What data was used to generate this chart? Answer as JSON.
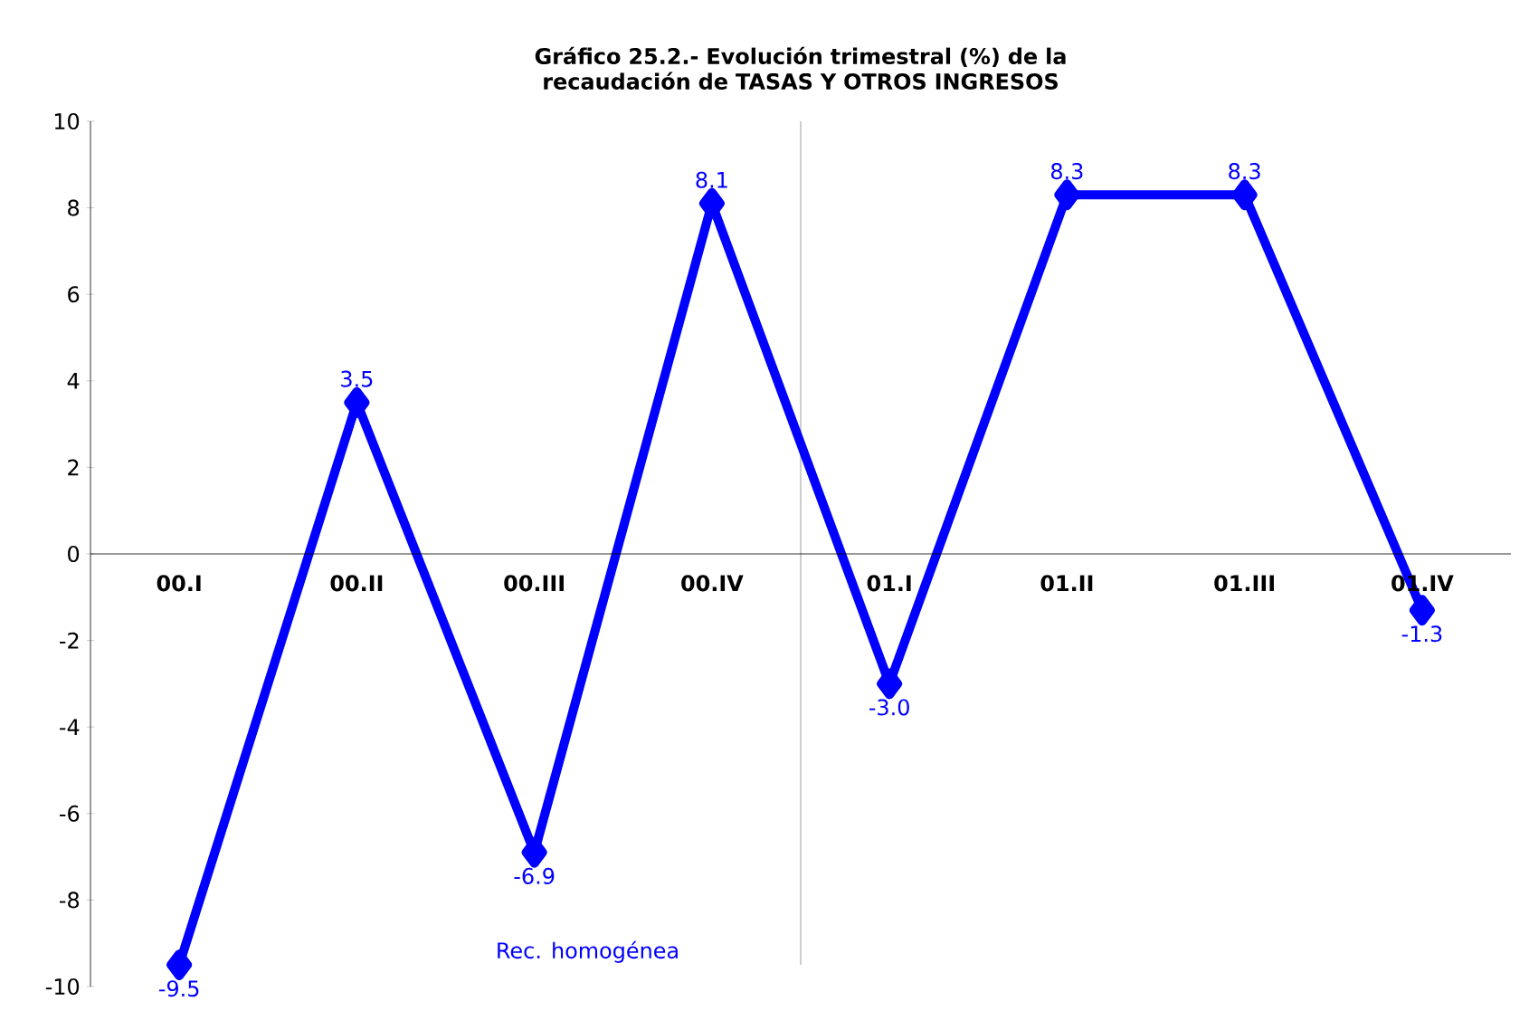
{
  "chart_data": {
    "type": "line",
    "title": "Gráfico 25.2.- Evolución trimestral (%) de la recaudación de TASAS Y OTROS INGRESOS",
    "categories": [
      "00.I",
      "00.II",
      "00.III",
      "00.IV",
      "01.I",
      "01.II",
      "01.III",
      "01.IV"
    ],
    "series": [
      {
        "color": "#0000ff",
        "values": [
          -9.5,
          3.5,
          -6.9,
          8.1,
          -3.0,
          8.3,
          8.3,
          -1.3
        ],
        "value_labels": [
          "-9.5",
          "3.5",
          "-6.9",
          "8.1",
          "-3.0",
          "8.3",
          "8.3",
          "-1.3"
        ]
      }
    ],
    "ylim": [
      -10,
      10
    ],
    "yticks": [
      -10,
      -8,
      -6,
      -4,
      -2,
      0,
      2,
      4,
      6,
      8,
      10
    ],
    "marker": "diamond",
    "line_style": "solid",
    "annotations": [
      "Rec. homogénea"
    ]
  }
}
